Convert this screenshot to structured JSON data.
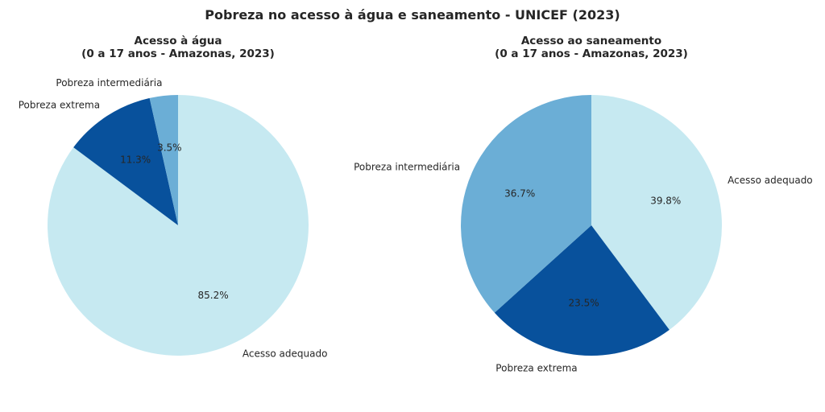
{
  "chart_data": {
    "title": "Pobreza no acesso à água e saneamento - UNICEF (2023)",
    "charts": [
      {
        "type": "pie",
        "title_line1": "Acesso à água",
        "title_line2": "(0 a 17 anos - Amazonas, 2023)",
        "labels": [
          "Acesso adequado",
          "Pobreza extrema",
          "Pobreza intermediária"
        ],
        "values": [
          85.2,
          11.3,
          3.5
        ],
        "pct_labels": [
          "85.2%",
          "11.3%",
          "3.5%"
        ],
        "colors": [
          "#c6e9f1",
          "#08519c",
          "#6baed6"
        ],
        "start_angle": 90,
        "direction": "clockwise"
      },
      {
        "type": "pie",
        "title_line1": "Acesso ao saneamento",
        "title_line2": "(0 a 17 anos - Amazonas, 2023)",
        "labels": [
          "Acesso adequado",
          "Pobreza extrema",
          "Pobreza intermediária"
        ],
        "values": [
          39.8,
          23.5,
          36.7
        ],
        "pct_labels": [
          "39.8%",
          "23.5%",
          "36.7%"
        ],
        "colors": [
          "#c6e9f1",
          "#08519c",
          "#6baed6"
        ],
        "start_angle": 90,
        "direction": "clockwise"
      }
    ]
  }
}
